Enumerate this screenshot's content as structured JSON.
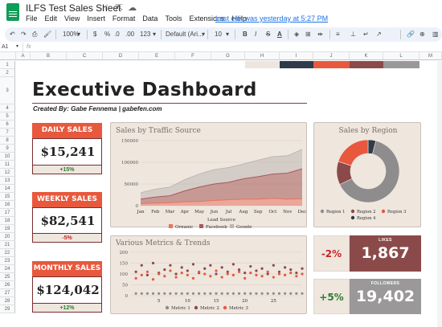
{
  "window": {
    "title": "ILFS Test Sales Sheet",
    "menu": [
      "File",
      "Edit",
      "View",
      "Insert",
      "Format",
      "Data",
      "Tools",
      "Extensions",
      "Help"
    ],
    "last_edit": "Last edit was yesterday at 5:27 PM"
  },
  "toolbar": {
    "zoom": "100%",
    "currency": "$",
    "percent": "%",
    "decrease_decimals": ".0",
    "increase_decimals": ".00",
    "number_format": "123",
    "font": "Default (Ari...",
    "font_size": "10",
    "bold": "B",
    "italic": "I",
    "strike": "S",
    "text_color": "A"
  },
  "formula_bar": {
    "cell": "A1",
    "fx": "fx",
    "value": ""
  },
  "grid": {
    "columns": [
      "A",
      "B",
      "C",
      "D",
      "E",
      "F",
      "G",
      "H",
      "I",
      "J",
      "K",
      "L",
      "M"
    ],
    "rows": [
      "1",
      "2",
      "3",
      "4",
      "5",
      "6",
      "7",
      "8",
      "9",
      "10",
      "11",
      "12",
      "13",
      "14",
      "15",
      "16",
      "17",
      "18",
      "19",
      "20",
      "21",
      "22",
      "23",
      "24",
      "25",
      "26",
      "27",
      "28",
      "29"
    ]
  },
  "colors": {
    "palette": [
      "#ece6df",
      "#2f3a4a",
      "#e8583d",
      "#8b4a4a",
      "#9a9899"
    ],
    "accent": "#e8583d",
    "dark_red": "#8b4a4a",
    "grey": "#9a9899",
    "positive": "#2e7d32",
    "negative": "#c62828"
  },
  "dashboard": {
    "title": "Executive Dashboard",
    "subtitle": "Created By: Gabe Fennema | gabefen.com"
  },
  "kpis": [
    {
      "label": "DAILY SALES",
      "value": "$15,241",
      "delta": "+15%"
    },
    {
      "label": "WEEKLY SALES",
      "value": "$82,541",
      "delta": "-5%"
    },
    {
      "label": "MONTHLY SALES",
      "value": "$124,042",
      "delta": "+12%"
    }
  ],
  "metrics": [
    {
      "change": "-2%",
      "label": "LIKES",
      "value": "1,867"
    },
    {
      "change": "+5%",
      "label": "FOLLOWERS",
      "value": "19,402"
    }
  ],
  "chart_data": [
    {
      "type": "area",
      "title": "Sales by Traffic Source",
      "xlabel": "Lead Source",
      "ylabel": "",
      "categories": [
        "Jan",
        "Feb",
        "Mar",
        "Apr",
        "May",
        "Jun",
        "Jul",
        "Aug",
        "Sep",
        "Oct",
        "Nov",
        "Dec"
      ],
      "yticks": [
        "0",
        "50000",
        "100000",
        "150000"
      ],
      "ylim": [
        0,
        150000
      ],
      "stacked": true,
      "series": [
        {
          "name": "Organic",
          "color": "#e8735e",
          "values": [
            5000,
            6000,
            7000,
            9000,
            10000,
            12000,
            14000,
            15000,
            15000,
            17000,
            15000,
            16000
          ]
        },
        {
          "name": "Facebook",
          "color": "#a65a5a",
          "values": [
            10000,
            14000,
            16000,
            25000,
            33000,
            38000,
            40000,
            47000,
            52000,
            56000,
            60000,
            69000
          ]
        },
        {
          "name": "Google",
          "color": "#bdb6b4",
          "values": [
            15000,
            18000,
            20000,
            26000,
            30000,
            33000,
            34000,
            34000,
            38000,
            40000,
            40000,
            45000
          ]
        }
      ],
      "legend": "bottom",
      "grid": true
    },
    {
      "type": "pie",
      "title": "Sales by Region",
      "donut": true,
      "series": [
        {
          "name": "Region 1",
          "color": "#8e8c8d",
          "value": 64
        },
        {
          "name": "Region 2",
          "color": "#8b4a4a",
          "value": 12
        },
        {
          "name": "Region 3",
          "color": "#e8583d",
          "value": 20
        },
        {
          "name": "Region 4",
          "color": "#2f3a4a",
          "value": 4
        }
      ],
      "legend": "bottom"
    },
    {
      "type": "scatter",
      "title": "Various Metrics & Trends",
      "yticks": [
        "0",
        "50",
        "100",
        "150",
        "200"
      ],
      "ylim": [
        0,
        200
      ],
      "xticks": [
        "5",
        "10",
        "15",
        "20",
        "25"
      ],
      "xlim": [
        0,
        30
      ],
      "x": [
        1,
        2,
        3,
        4,
        5,
        6,
        7,
        8,
        9,
        10,
        11,
        12,
        13,
        14,
        15,
        16,
        17,
        18,
        19,
        20,
        21,
        22,
        23,
        24,
        25,
        26,
        27,
        28,
        29,
        30
      ],
      "series": [
        {
          "name": "Metric 1",
          "color": "#8e8c8d",
          "values": [
            10,
            10,
            10,
            10,
            10,
            10,
            10,
            10,
            10,
            10,
            10,
            10,
            10,
            10,
            10,
            10,
            10,
            10,
            10,
            10,
            10,
            10,
            10,
            10,
            10,
            10,
            10,
            10,
            10,
            10
          ]
        },
        {
          "name": "Metric 2",
          "color": "#8b4a4a",
          "values": [
            110,
            140,
            95,
            150,
            105,
            120,
            140,
            100,
            130,
            115,
            145,
            105,
            125,
            140,
            100,
            130,
            110,
            145,
            120,
            105,
            135,
            115,
            125,
            100,
            140,
            110,
            130,
            120,
            105,
            125
          ]
        },
        {
          "name": "Metric 3",
          "color": "#e8583d",
          "values": [
            80,
            95,
            110,
            75,
            100,
            90,
            115,
            85,
            105,
            95,
            80,
            110,
            100,
            90,
            115,
            85,
            100,
            95,
            110,
            80,
            105,
            95,
            90,
            110,
            85,
            100,
            95,
            105,
            90,
            100
          ]
        }
      ],
      "legend": "bottom",
      "grid": true
    }
  ]
}
